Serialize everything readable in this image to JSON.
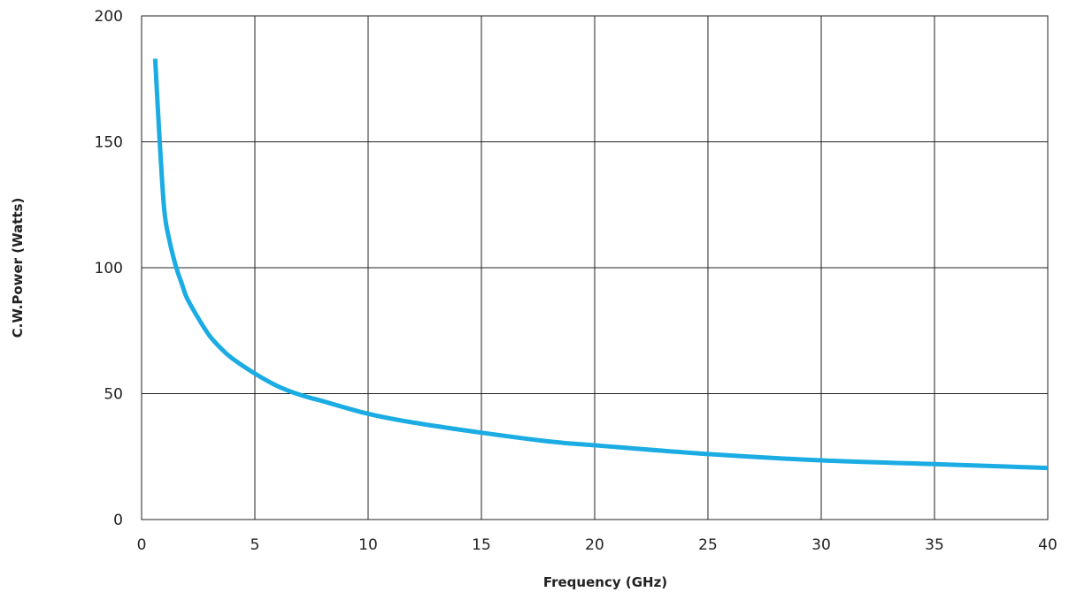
{
  "chart_data": {
    "type": "line",
    "title": "",
    "xlabel": "Frequency (GHz)",
    "ylabel": "C.W.Power (Watts)",
    "xlim": [
      0,
      40
    ],
    "ylim": [
      0,
      200
    ],
    "xticks": [
      "0",
      "5",
      "10",
      "15",
      "20",
      "25",
      "30",
      "35",
      "40"
    ],
    "yticks": [
      "0",
      "50",
      "100",
      "150",
      "200"
    ],
    "grid": true,
    "series": [
      {
        "color": "#1aace3",
        "x": [
          0.6,
          0.8,
          1.0,
          1.2,
          1.5,
          1.8,
          2.0,
          2.5,
          3.0,
          3.5,
          4.0,
          5.0,
          6.0,
          7.0,
          8.0,
          10.0,
          12.0,
          15.0,
          18.0,
          20.0,
          25.0,
          30.0,
          35.0,
          40.0
        ],
        "y": [
          183,
          150,
          123,
          112,
          101,
          93,
          88,
          80,
          73,
          68,
          64,
          58,
          53,
          49.5,
          47,
          42,
          38.5,
          34.5,
          31,
          29.5,
          26,
          23.5,
          22,
          20.5
        ]
      }
    ]
  }
}
